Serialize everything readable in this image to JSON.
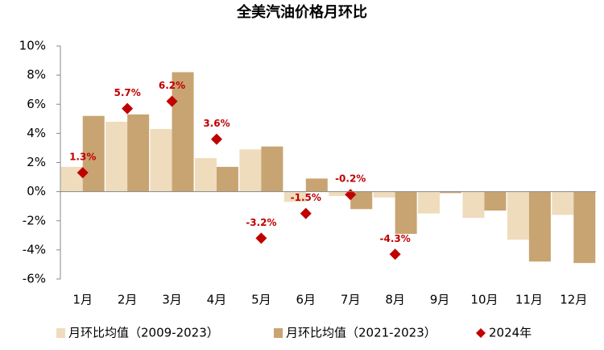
{
  "chart_data": {
    "type": "bar",
    "title": "全美汽油价格月环比",
    "categories": [
      "1月",
      "2月",
      "3月",
      "4月",
      "5月",
      "6月",
      "7月",
      "8月",
      "9月",
      "10月",
      "11月",
      "12月"
    ],
    "series": [
      {
        "name": "月环比均值（2009-2023）",
        "color": "#efdcbd",
        "values": [
          1.7,
          4.8,
          4.3,
          2.3,
          2.9,
          -0.7,
          -0.3,
          -0.4,
          -1.5,
          -1.8,
          -3.3,
          -1.6
        ]
      },
      {
        "name": "月环比均值（2021-2023）",
        "color": "#c8a472",
        "values": [
          5.2,
          5.3,
          8.2,
          1.7,
          3.1,
          0.9,
          -1.2,
          -2.9,
          -0.1,
          -1.3,
          -4.8,
          -4.9
        ]
      },
      {
        "name": "2024年",
        "color": "#c00000",
        "marker": "diamond",
        "values": [
          1.3,
          5.7,
          6.2,
          3.6,
          -3.2,
          -1.5,
          -0.2,
          -4.3,
          null,
          null,
          null,
          null
        ],
        "value_labels": [
          "1.3%",
          "5.7%",
          "6.2%",
          "3.6%",
          "-3.2%",
          "-1.5%",
          "-0.2%",
          "-4.3%",
          null,
          null,
          null,
          null
        ]
      }
    ],
    "ylim": [
      -6,
      10
    ],
    "yticks": [
      {
        "value": -6,
        "label": "-6%"
      },
      {
        "value": -4,
        "label": "-4%"
      },
      {
        "value": -2,
        "label": "-2%"
      },
      {
        "value": 0,
        "label": "0%"
      },
      {
        "value": 2,
        "label": "2%"
      },
      {
        "value": 4,
        "label": "4%"
      },
      {
        "value": 6,
        "label": "6%"
      },
      {
        "value": 8,
        "label": "8%"
      },
      {
        "value": 10,
        "label": "10%"
      }
    ]
  }
}
